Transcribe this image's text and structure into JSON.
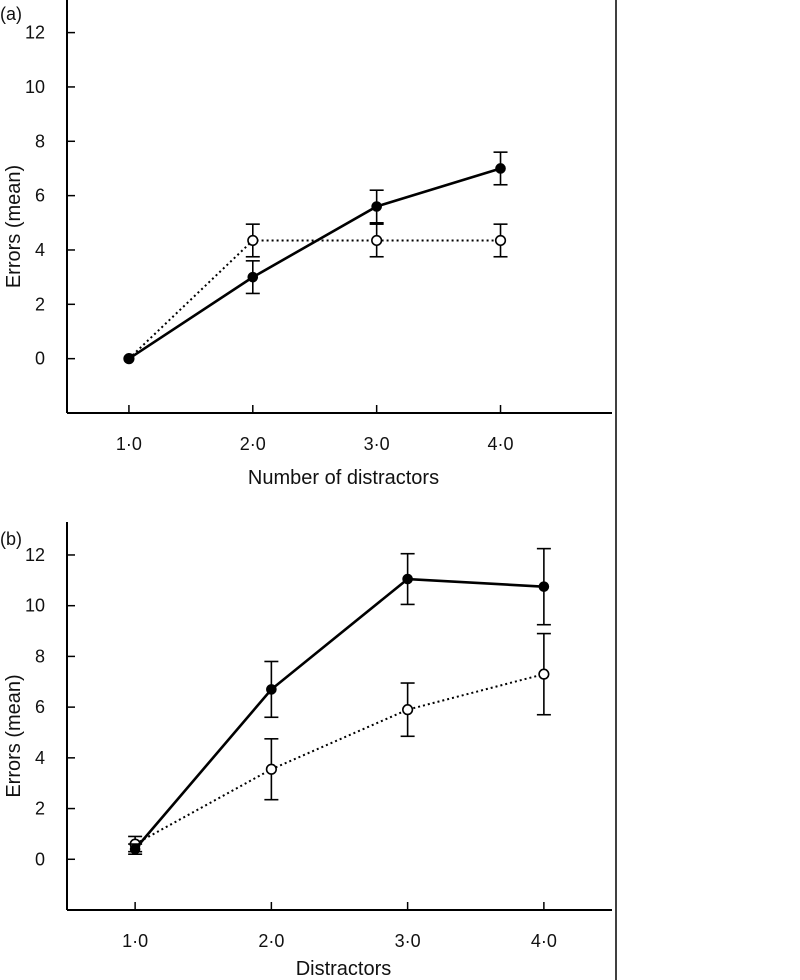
{
  "chart_data": [
    {
      "type": "line",
      "panel_label": "(a)",
      "xlabel": "Number of distractors",
      "ylabel": "Errors (mean)",
      "x": [
        1,
        2,
        3,
        4
      ],
      "x_tick_labels": [
        "1·0",
        "2·0",
        "3·0",
        "4·0"
      ],
      "xlim": [
        0.5,
        4.9
      ],
      "ylim": [
        -2,
        13.2
      ],
      "y_ticks": [
        0,
        2,
        4,
        6,
        8,
        10,
        12
      ],
      "grid": false,
      "series": [
        {
          "style": "solid",
          "marker": "filled-circle",
          "color": "#000000",
          "values": [
            0,
            3.0,
            5.6,
            7.0
          ],
          "error": [
            0,
            0.6,
            0.6,
            0.6
          ]
        },
        {
          "style": "dotted",
          "marker": "open-circle",
          "color": "#000000",
          "values": [
            0,
            4.35,
            4.35,
            4.35
          ],
          "error": [
            0,
            0.6,
            0.6,
            0.6
          ]
        }
      ]
    },
    {
      "type": "line",
      "panel_label": "(b)",
      "xlabel": "Distractors",
      "ylabel": "Errors (mean)",
      "x": [
        1,
        2,
        3,
        4
      ],
      "x_tick_labels": [
        "1·0",
        "2·0",
        "3·0",
        "4·0"
      ],
      "xlim": [
        0.5,
        4.5
      ],
      "ylim": [
        -2,
        13.3
      ],
      "y_ticks": [
        0,
        2,
        4,
        6,
        8,
        10,
        12
      ],
      "grid": false,
      "series": [
        {
          "style": "solid",
          "marker": "filled-circle",
          "color": "#000000",
          "values": [
            0.4,
            6.7,
            11.05,
            10.75
          ],
          "error": [
            0.2,
            1.1,
            1.0,
            1.5
          ]
        },
        {
          "style": "dotted",
          "marker": "open-circle",
          "color": "#000000",
          "values": [
            0.6,
            3.55,
            5.9,
            7.3
          ],
          "error": [
            0.3,
            1.2,
            1.05,
            1.6
          ]
        }
      ]
    }
  ]
}
